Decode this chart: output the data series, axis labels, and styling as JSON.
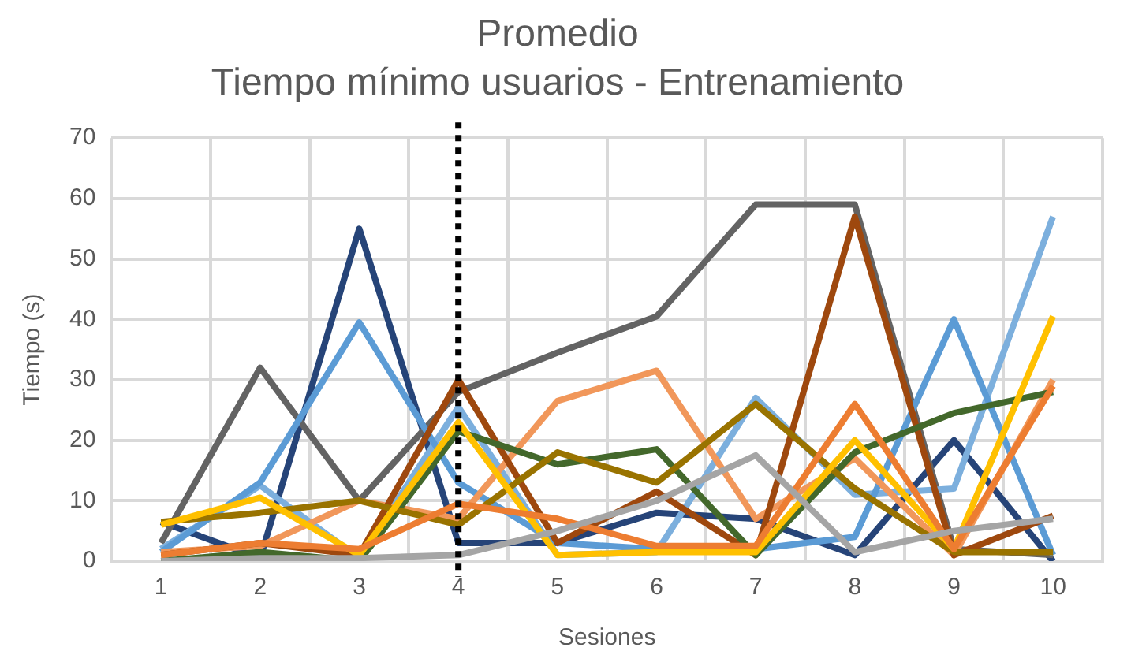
{
  "chart_data": {
    "type": "line",
    "title": "Promedio",
    "subtitle": "Tiempo mínimo usuarios - Entrenamiento",
    "xlabel": "Sesiones",
    "ylabel": "Tiempo (s)",
    "categories": [
      "1",
      "2",
      "3",
      "4",
      "5",
      "6",
      "7",
      "8",
      "9",
      "10"
    ],
    "ylim": [
      0,
      70
    ],
    "yticks": [
      0,
      10,
      20,
      30,
      40,
      50,
      60,
      70
    ],
    "grid": true,
    "legend": false,
    "marker": "none",
    "line_style": "solid",
    "ref_lines": [
      {
        "axis": "x",
        "value": "4",
        "color": "#000000",
        "line_style": "dotted"
      }
    ],
    "series": [
      {
        "color": "#a5a5a5",
        "values": [
          0,
          0.5,
          0.5,
          1,
          5,
          10,
          17.5,
          1.5,
          5,
          7
        ]
      },
      {
        "color": "#ed7d31",
        "values": [
          1,
          3,
          2,
          9.5,
          7,
          2.5,
          2.5,
          26,
          2,
          29
        ]
      },
      {
        "color": "#ffc000",
        "values": [
          6,
          10.5,
          1,
          23,
          1,
          1.5,
          1.5,
          20,
          2,
          40.5
        ]
      },
      {
        "color": "#997300",
        "values": [
          6.5,
          8,
          10,
          6,
          18,
          13,
          26,
          12,
          1.5,
          1.5
        ]
      },
      {
        "color": "#43682b",
        "values": [
          0,
          1.5,
          0,
          21.5,
          16,
          18.5,
          1,
          18,
          24.5,
          28
        ]
      },
      {
        "color": "#9e480e",
        "values": [
          1,
          3,
          1,
          30,
          3,
          11.5,
          1,
          57,
          1,
          7.5
        ]
      },
      {
        "color": "#f1975a",
        "values": [
          1.5,
          2.5,
          10,
          7,
          26.5,
          31.5,
          7,
          17,
          1,
          30
        ]
      },
      {
        "color": "#5b9bd5",
        "values": [
          1.5,
          13,
          39.5,
          13,
          3,
          2,
          2,
          4,
          40,
          1
        ]
      },
      {
        "color": "#7cafdd",
        "values": [
          2,
          12.5,
          0.5,
          25.5,
          1,
          1.5,
          27,
          11,
          12,
          57
        ]
      },
      {
        "color": "#636363",
        "values": [
          3,
          32,
          10,
          28,
          34.5,
          40.5,
          59,
          59,
          2,
          1
        ]
      },
      {
        "color": "#264478",
        "values": [
          6.5,
          0.5,
          55,
          3,
          3,
          8,
          7,
          1,
          20,
          0
        ]
      }
    ]
  }
}
